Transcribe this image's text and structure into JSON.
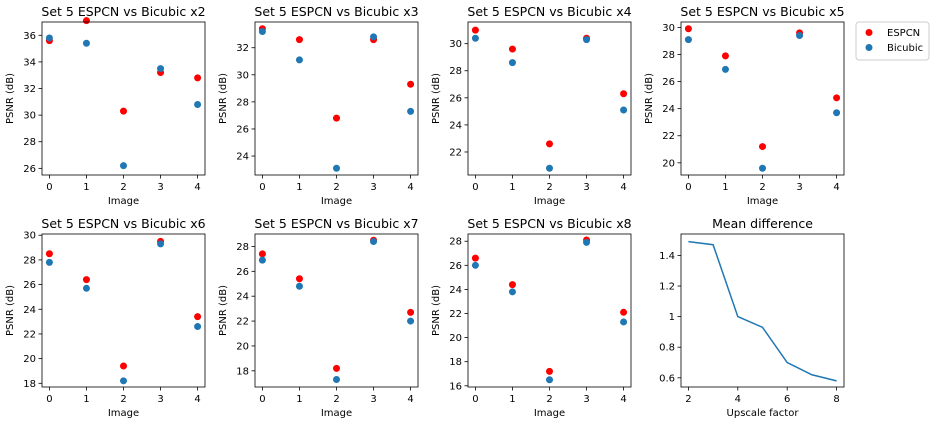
{
  "legend": {
    "items": [
      {
        "label": "ESPCN",
        "color": "#ff0000"
      },
      {
        "label": "Bicubic",
        "color": "#1f77b4"
      }
    ]
  },
  "chart_data": [
    {
      "type": "scatter",
      "title": "Set 5 ESPCN vs Bicubic x2",
      "xlabel": "Image",
      "ylabel": "PSNR (dB)",
      "xlim": [
        -0.2,
        4.2
      ],
      "ylim": [
        25.5,
        37.0
      ],
      "xticks": [
        0,
        1,
        2,
        3,
        4
      ],
      "yticks": [
        26,
        28,
        30,
        32,
        34,
        36
      ],
      "x": [
        0,
        1,
        2,
        3,
        4
      ],
      "series": [
        {
          "name": "ESPCN",
          "color": "#ff0000",
          "values": [
            35.6,
            37.1,
            30.3,
            33.2,
            32.8
          ]
        },
        {
          "name": "Bicubic",
          "color": "#1f77b4",
          "values": [
            35.8,
            35.4,
            26.2,
            33.5,
            30.8
          ]
        }
      ]
    },
    {
      "type": "scatter",
      "title": "Set 5 ESPCN vs Bicubic x3",
      "xlabel": "Image",
      "ylabel": "PSNR (dB)",
      "xlim": [
        -0.2,
        4.2
      ],
      "ylim": [
        22.6,
        33.9
      ],
      "xticks": [
        0,
        1,
        2,
        3,
        4
      ],
      "yticks": [
        24,
        26,
        28,
        30,
        32
      ],
      "x": [
        0,
        1,
        2,
        3,
        4
      ],
      "series": [
        {
          "name": "ESPCN",
          "color": "#ff0000",
          "values": [
            33.4,
            32.6,
            26.8,
            32.6,
            29.3
          ]
        },
        {
          "name": "Bicubic",
          "color": "#1f77b4",
          "values": [
            33.2,
            31.1,
            23.1,
            32.8,
            27.3
          ]
        }
      ]
    },
    {
      "type": "scatter",
      "title": "Set 5 ESPCN vs Bicubic x4",
      "xlabel": "Image",
      "ylabel": "PSNR (dB)",
      "xlim": [
        -0.2,
        4.2
      ],
      "ylim": [
        20.3,
        31.6
      ],
      "xticks": [
        0,
        1,
        2,
        3,
        4
      ],
      "yticks": [
        22,
        24,
        26,
        28,
        30
      ],
      "x": [
        0,
        1,
        2,
        3,
        4
      ],
      "series": [
        {
          "name": "ESPCN",
          "color": "#ff0000",
          "values": [
            31.0,
            29.6,
            22.6,
            30.4,
            26.3
          ]
        },
        {
          "name": "Bicubic",
          "color": "#1f77b4",
          "values": [
            30.4,
            28.6,
            20.8,
            30.3,
            25.1
          ]
        }
      ]
    },
    {
      "type": "scatter",
      "title": "Set 5 ESPCN vs Bicubic x5",
      "xlabel": "Image",
      "ylabel": "PSNR (dB)",
      "xlim": [
        -0.2,
        4.2
      ],
      "ylim": [
        19.1,
        30.4
      ],
      "xticks": [
        0,
        1,
        2,
        3,
        4
      ],
      "yticks": [
        20,
        22,
        24,
        26,
        28,
        30
      ],
      "x": [
        0,
        1,
        2,
        3,
        4
      ],
      "series": [
        {
          "name": "ESPCN",
          "color": "#ff0000",
          "values": [
            29.9,
            27.9,
            21.2,
            29.6,
            24.8
          ]
        },
        {
          "name": "Bicubic",
          "color": "#1f77b4",
          "values": [
            29.1,
            26.9,
            19.6,
            29.4,
            23.7
          ]
        }
      ]
    },
    {
      "type": "scatter",
      "title": "Set 5 ESPCN vs Bicubic x6",
      "xlabel": "Image",
      "ylabel": "PSNR (dB)",
      "xlim": [
        -0.2,
        4.2
      ],
      "ylim": [
        17.7,
        30.1
      ],
      "xticks": [
        0,
        1,
        2,
        3,
        4
      ],
      "yticks": [
        18,
        20,
        22,
        24,
        26,
        28,
        30
      ],
      "x": [
        0,
        1,
        2,
        3,
        4
      ],
      "series": [
        {
          "name": "ESPCN",
          "color": "#ff0000",
          "values": [
            28.5,
            26.4,
            19.4,
            29.5,
            23.4
          ]
        },
        {
          "name": "Bicubic",
          "color": "#1f77b4",
          "values": [
            27.8,
            25.7,
            18.2,
            29.3,
            22.6
          ]
        }
      ]
    },
    {
      "type": "scatter",
      "title": "Set 5 ESPCN vs Bicubic x7",
      "xlabel": "Image",
      "ylabel": "PSNR (dB)",
      "xlim": [
        -0.2,
        4.2
      ],
      "ylim": [
        16.7,
        29.0
      ],
      "xticks": [
        0,
        1,
        2,
        3,
        4
      ],
      "yticks": [
        18,
        20,
        22,
        24,
        26,
        28
      ],
      "x": [
        0,
        1,
        2,
        3,
        4
      ],
      "series": [
        {
          "name": "ESPCN",
          "color": "#ff0000",
          "values": [
            27.4,
            25.4,
            18.2,
            28.5,
            22.7
          ]
        },
        {
          "name": "Bicubic",
          "color": "#1f77b4",
          "values": [
            26.9,
            24.8,
            17.3,
            28.4,
            22.0
          ]
        }
      ]
    },
    {
      "type": "scatter",
      "title": "Set 5 ESPCN vs Bicubic x8",
      "xlabel": "Image",
      "ylabel": "PSNR (dB)",
      "xlim": [
        -0.2,
        4.2
      ],
      "ylim": [
        15.9,
        28.6
      ],
      "xticks": [
        0,
        1,
        2,
        3,
        4
      ],
      "yticks": [
        16,
        18,
        20,
        22,
        24,
        26,
        28
      ],
      "x": [
        0,
        1,
        2,
        3,
        4
      ],
      "series": [
        {
          "name": "ESPCN",
          "color": "#ff0000",
          "values": [
            26.6,
            24.4,
            17.2,
            28.1,
            22.1
          ]
        },
        {
          "name": "Bicubic",
          "color": "#1f77b4",
          "values": [
            26.0,
            23.8,
            16.5,
            27.9,
            21.3
          ]
        }
      ]
    },
    {
      "type": "line",
      "title": "Mean difference",
      "xlabel": "Upscale factor",
      "ylabel": "",
      "xlim": [
        1.7,
        8.3
      ],
      "ylim": [
        0.54,
        1.54
      ],
      "xticks": [
        2,
        4,
        6,
        8
      ],
      "yticks": [
        0.6,
        0.8,
        1.0,
        1.2,
        1.4
      ],
      "x": [
        2,
        3,
        4,
        5,
        6,
        7,
        8
      ],
      "series": [
        {
          "color": "#1f77b4",
          "values": [
            1.49,
            1.47,
            1.0,
            0.93,
            0.7,
            0.62,
            0.58
          ]
        }
      ]
    }
  ]
}
